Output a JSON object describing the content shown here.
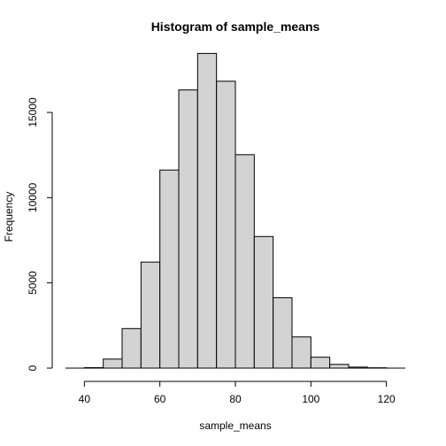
{
  "chart_data": {
    "type": "bar",
    "title": "Histogram of sample_means",
    "xlabel": "sample_means",
    "ylabel": "Frequency",
    "bin_edges": [
      40,
      45,
      50,
      55,
      60,
      65,
      70,
      75,
      80,
      85,
      90,
      95,
      100,
      105,
      110,
      115,
      120
    ],
    "values": [
      30,
      530,
      2320,
      6220,
      11620,
      16320,
      18460,
      16830,
      12520,
      7720,
      4130,
      1830,
      640,
      220,
      60,
      20
    ],
    "x_ticks": [
      40,
      60,
      80,
      100,
      120
    ],
    "y_ticks": [
      0,
      5000,
      10000,
      15000
    ],
    "xlim": [
      35,
      125
    ],
    "ylim": [
      0,
      19000
    ],
    "grid": false
  }
}
